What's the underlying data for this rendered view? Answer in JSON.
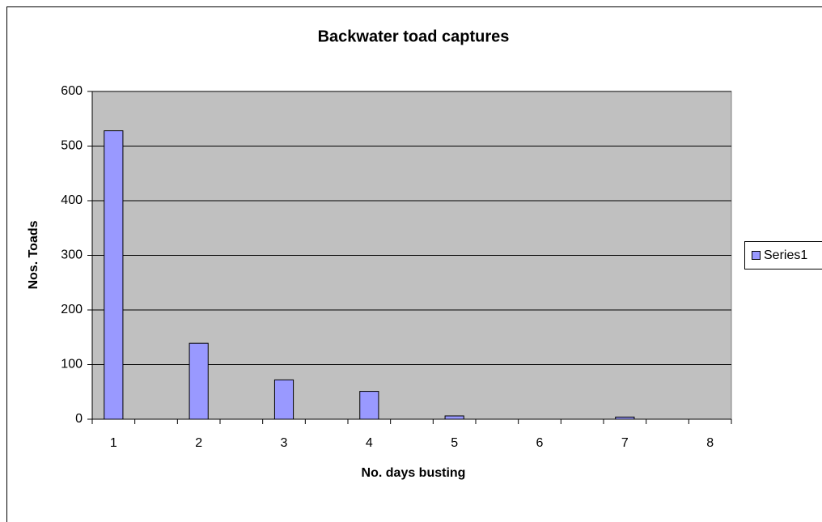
{
  "chart_data": {
    "type": "bar",
    "title": "Backwater toad captures",
    "x_label": "No. days busting",
    "y_label": "Nos. Toads",
    "categories": [
      "1",
      null,
      "2",
      null,
      "3",
      null,
      "4",
      null,
      "5",
      null,
      "6",
      null,
      "7",
      null,
      "8"
    ],
    "series": [
      {
        "name": "Series1",
        "color": "#9999ff",
        "values": [
          528,
          0,
          139,
          0,
          72,
          0,
          51,
          0,
          6,
          0,
          0,
          0,
          4,
          0,
          0
        ]
      }
    ],
    "ylim": [
      0,
      600
    ],
    "yticks": [
      0,
      100,
      200,
      300,
      400,
      500,
      600
    ],
    "grid": true,
    "legend": "right"
  }
}
